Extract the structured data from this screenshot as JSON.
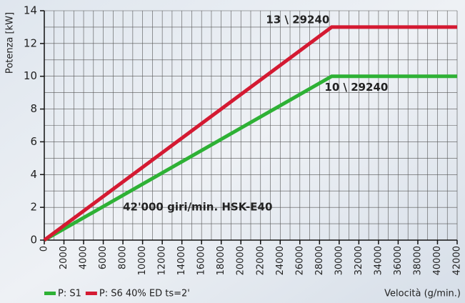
{
  "chart_data": {
    "type": "line",
    "y_label": "Potenza [kW]",
    "x_label": "Velocità (g/min.)",
    "series": [
      {
        "name": "P: S1",
        "color": "#2eb135",
        "x": [
          0,
          29240,
          42000
        ],
        "values": [
          0,
          10,
          10
        ]
      },
      {
        "name": "P: S6 40% ED ts=2'",
        "color": "#d41a32",
        "x": [
          0,
          29240,
          42000
        ],
        "values": [
          0,
          13,
          13
        ]
      }
    ],
    "annotations": [
      {
        "text": "13 \\ 29240",
        "x": 29240,
        "y": 13,
        "color": "#d41a32"
      },
      {
        "text": "10 \\ 29240",
        "x": 29240,
        "y": 10,
        "color": "#2eb135"
      },
      {
        "text": "42'000 giri/min. HSK-E40",
        "x": 8000,
        "y": 2,
        "color": "#111"
      }
    ],
    "xlim": [
      0,
      42000
    ],
    "xticks": [
      0,
      2000,
      4000,
      6000,
      8000,
      10000,
      12000,
      14000,
      16000,
      18000,
      20000,
      22000,
      24000,
      26000,
      28000,
      30000,
      32000,
      34000,
      36000,
      38000,
      40000,
      42000
    ],
    "xminorticks": [
      1000,
      3000,
      5000,
      7000,
      9000,
      11000,
      13000,
      15000,
      17000,
      19000,
      21000,
      23000,
      25000,
      27000,
      29000,
      31000,
      33000,
      35000,
      37000,
      39000,
      41000
    ],
    "ylim": [
      0,
      14
    ],
    "yticks": [
      0,
      2,
      4,
      6,
      8,
      10,
      12,
      14
    ],
    "yminorticks": [
      1,
      3,
      5,
      7,
      9,
      11,
      13
    ],
    "grid": true,
    "legend": "bottom-left"
  }
}
